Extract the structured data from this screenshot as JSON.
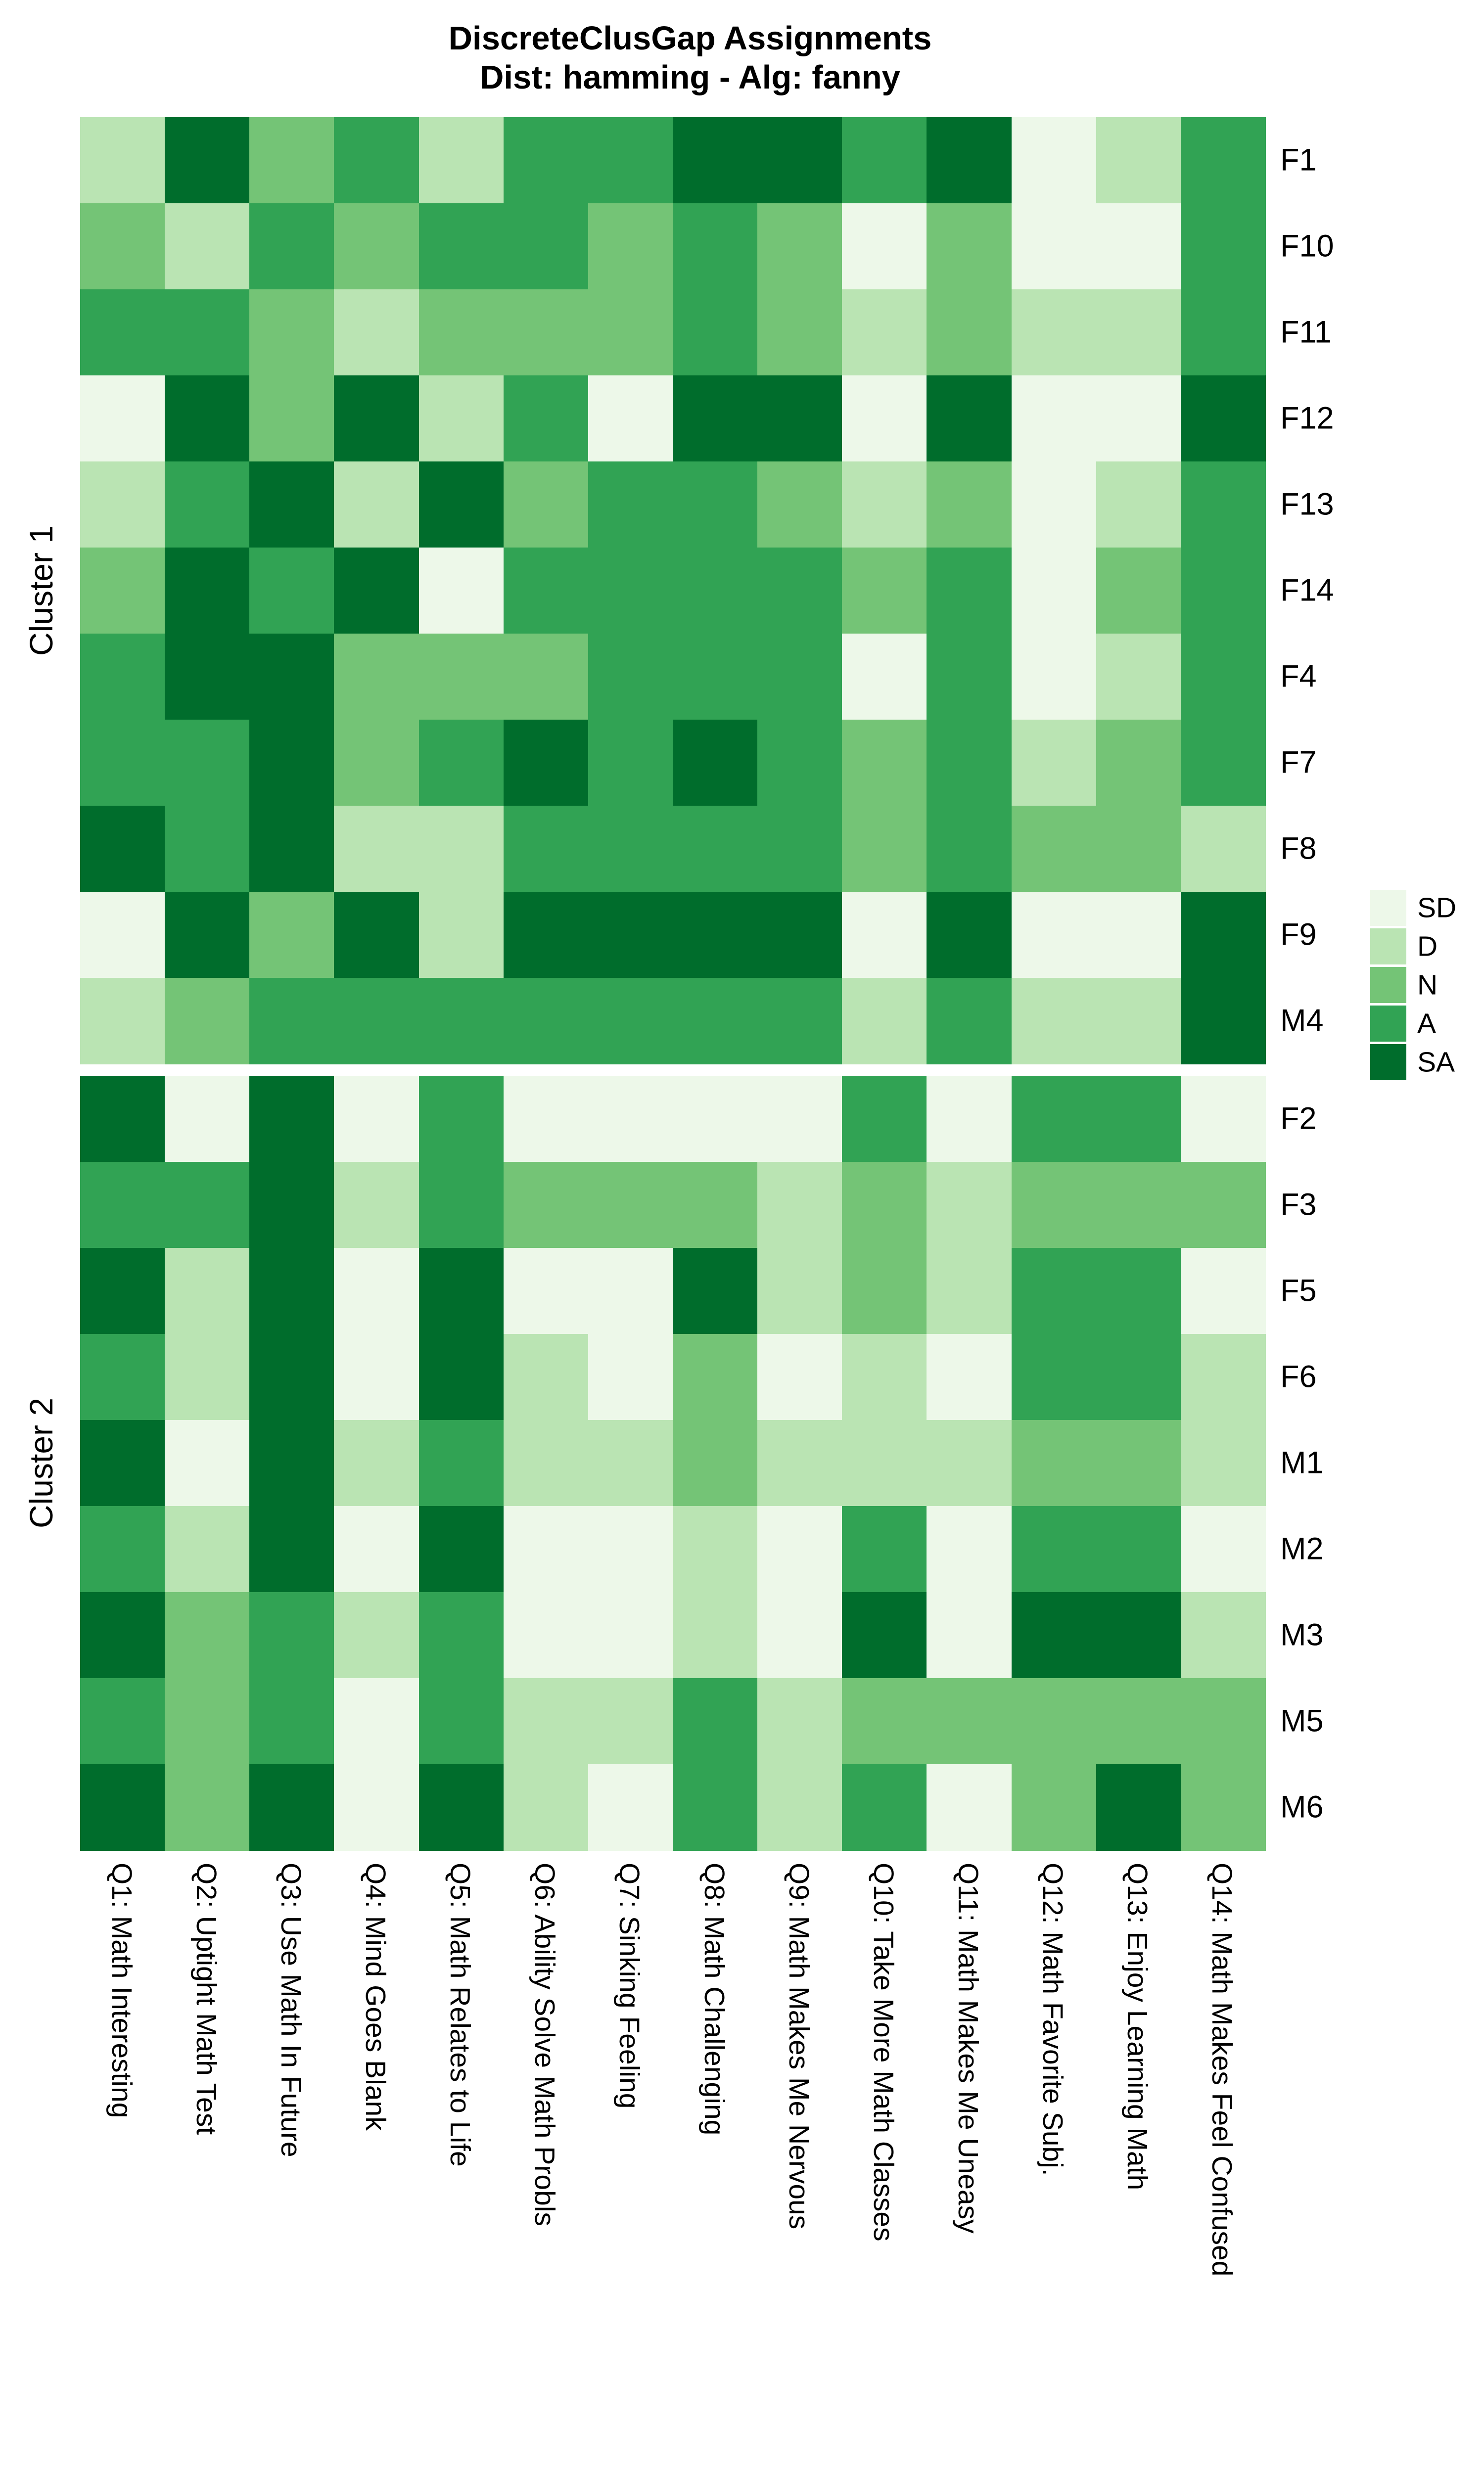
{
  "title": {
    "line1": "DiscreteClusGap Assignments",
    "line2": "Dist: hamming - Alg: fanny"
  },
  "legend": {
    "items": [
      {
        "label": "SD",
        "color": "#edf8e9"
      },
      {
        "label": "D",
        "color": "#bae4b3"
      },
      {
        "label": "N",
        "color": "#74c476"
      },
      {
        "label": "A",
        "color": "#31a354"
      },
      {
        "label": "SA",
        "color": "#006d2c"
      }
    ]
  },
  "chart_data": {
    "type": "heatmap",
    "title": "DiscreteClusGap Assignments",
    "subtitle": "Dist: hamming - Alg: fanny",
    "levels": [
      "SD",
      "D",
      "N",
      "A",
      "SA"
    ],
    "palette": {
      "SD": "#edf8e9",
      "D": "#bae4b3",
      "N": "#74c476",
      "A": "#31a354",
      "SA": "#006d2c"
    },
    "columns": [
      "Q1: Math Interesting",
      "Q2: Uptight Math Test",
      "Q3: Use Math In Future",
      "Q4: Mind Goes Blank",
      "Q5: Math Relates to Life",
      "Q6: Ability Solve Math Probls",
      "Q7: Sinking Feeling",
      "Q8: Math Challenging",
      "Q9: Math Makes Me Nervous",
      "Q10: Take More Math Classes",
      "Q11: Math Makes Me Uneasy",
      "Q12: Math Favorite Subj.",
      "Q13: Enjoy Learning Math",
      "Q14: Math Makes Feel Confused"
    ],
    "clusters": [
      {
        "name": "Cluster 1",
        "rows": [
          {
            "id": "F1",
            "values": [
              "D",
              "SA",
              "N",
              "A",
              "D",
              "A",
              "A",
              "SA",
              "SA",
              "A",
              "SA",
              "SD",
              "D",
              "A"
            ]
          },
          {
            "id": "F10",
            "values": [
              "N",
              "D",
              "A",
              "N",
              "A",
              "A",
              "N",
              "A",
              "N",
              "SD",
              "N",
              "SD",
              "SD",
              "A"
            ]
          },
          {
            "id": "F11",
            "values": [
              "A",
              "A",
              "N",
              "D",
              "N",
              "N",
              "N",
              "A",
              "N",
              "D",
              "N",
              "D",
              "D",
              "A"
            ]
          },
          {
            "id": "F12",
            "values": [
              "SD",
              "SA",
              "N",
              "SA",
              "D",
              "A",
              "SD",
              "SA",
              "SA",
              "SD",
              "SA",
              "SD",
              "SD",
              "SA"
            ]
          },
          {
            "id": "F13",
            "values": [
              "D",
              "A",
              "SA",
              "D",
              "SA",
              "N",
              "A",
              "A",
              "N",
              "D",
              "N",
              "SD",
              "D",
              "A"
            ]
          },
          {
            "id": "F14",
            "values": [
              "N",
              "SA",
              "A",
              "SA",
              "SD",
              "A",
              "A",
              "A",
              "A",
              "N",
              "A",
              "SD",
              "N",
              "A"
            ]
          },
          {
            "id": "F4",
            "values": [
              "A",
              "SA",
              "SA",
              "N",
              "N",
              "N",
              "A",
              "A",
              "A",
              "SD",
              "A",
              "SD",
              "D",
              "A"
            ]
          },
          {
            "id": "F7",
            "values": [
              "A",
              "A",
              "SA",
              "N",
              "A",
              "SA",
              "A",
              "SA",
              "A",
              "N",
              "A",
              "D",
              "N",
              "A"
            ]
          },
          {
            "id": "F8",
            "values": [
              "SA",
              "A",
              "SA",
              "D",
              "D",
              "A",
              "A",
              "A",
              "A",
              "N",
              "A",
              "N",
              "N",
              "D"
            ]
          },
          {
            "id": "F9",
            "values": [
              "SD",
              "SA",
              "N",
              "SA",
              "D",
              "SA",
              "SA",
              "SA",
              "SA",
              "SD",
              "SA",
              "SD",
              "SD",
              "SA"
            ]
          },
          {
            "id": "M4",
            "values": [
              "D",
              "N",
              "A",
              "A",
              "A",
              "A",
              "A",
              "A",
              "A",
              "D",
              "A",
              "D",
              "D",
              "SA"
            ]
          }
        ]
      },
      {
        "name": "Cluster 2",
        "rows": [
          {
            "id": "F2",
            "values": [
              "SA",
              "SD",
              "SA",
              "SD",
              "A",
              "SD",
              "SD",
              "SD",
              "SD",
              "A",
              "SD",
              "A",
              "A",
              "SD"
            ]
          },
          {
            "id": "F3",
            "values": [
              "A",
              "A",
              "SA",
              "D",
              "A",
              "N",
              "N",
              "N",
              "D",
              "N",
              "D",
              "N",
              "N",
              "N"
            ]
          },
          {
            "id": "F5",
            "values": [
              "SA",
              "D",
              "SA",
              "SD",
              "SA",
              "SD",
              "SD",
              "SA",
              "D",
              "N",
              "D",
              "A",
              "A",
              "SD"
            ]
          },
          {
            "id": "F6",
            "values": [
              "A",
              "D",
              "SA",
              "SD",
              "SA",
              "D",
              "SD",
              "N",
              "SD",
              "D",
              "SD",
              "A",
              "A",
              "D"
            ]
          },
          {
            "id": "M1",
            "values": [
              "SA",
              "SD",
              "SA",
              "D",
              "A",
              "D",
              "D",
              "N",
              "D",
              "D",
              "D",
              "N",
              "N",
              "D"
            ]
          },
          {
            "id": "M2",
            "values": [
              "A",
              "D",
              "SA",
              "SD",
              "SA",
              "SD",
              "SD",
              "D",
              "SD",
              "A",
              "SD",
              "A",
              "A",
              "SD"
            ]
          },
          {
            "id": "M3",
            "values": [
              "SA",
              "N",
              "A",
              "D",
              "A",
              "SD",
              "SD",
              "D",
              "SD",
              "SA",
              "SD",
              "SA",
              "SA",
              "D"
            ]
          },
          {
            "id": "M5",
            "values": [
              "A",
              "N",
              "A",
              "SD",
              "A",
              "D",
              "D",
              "A",
              "D",
              "N",
              "N",
              "N",
              "N",
              "N"
            ]
          },
          {
            "id": "M6",
            "values": [
              "SA",
              "N",
              "SA",
              "SD",
              "SA",
              "D",
              "SD",
              "A",
              "D",
              "A",
              "SD",
              "N",
              "SA",
              "N"
            ]
          }
        ]
      }
    ]
  }
}
